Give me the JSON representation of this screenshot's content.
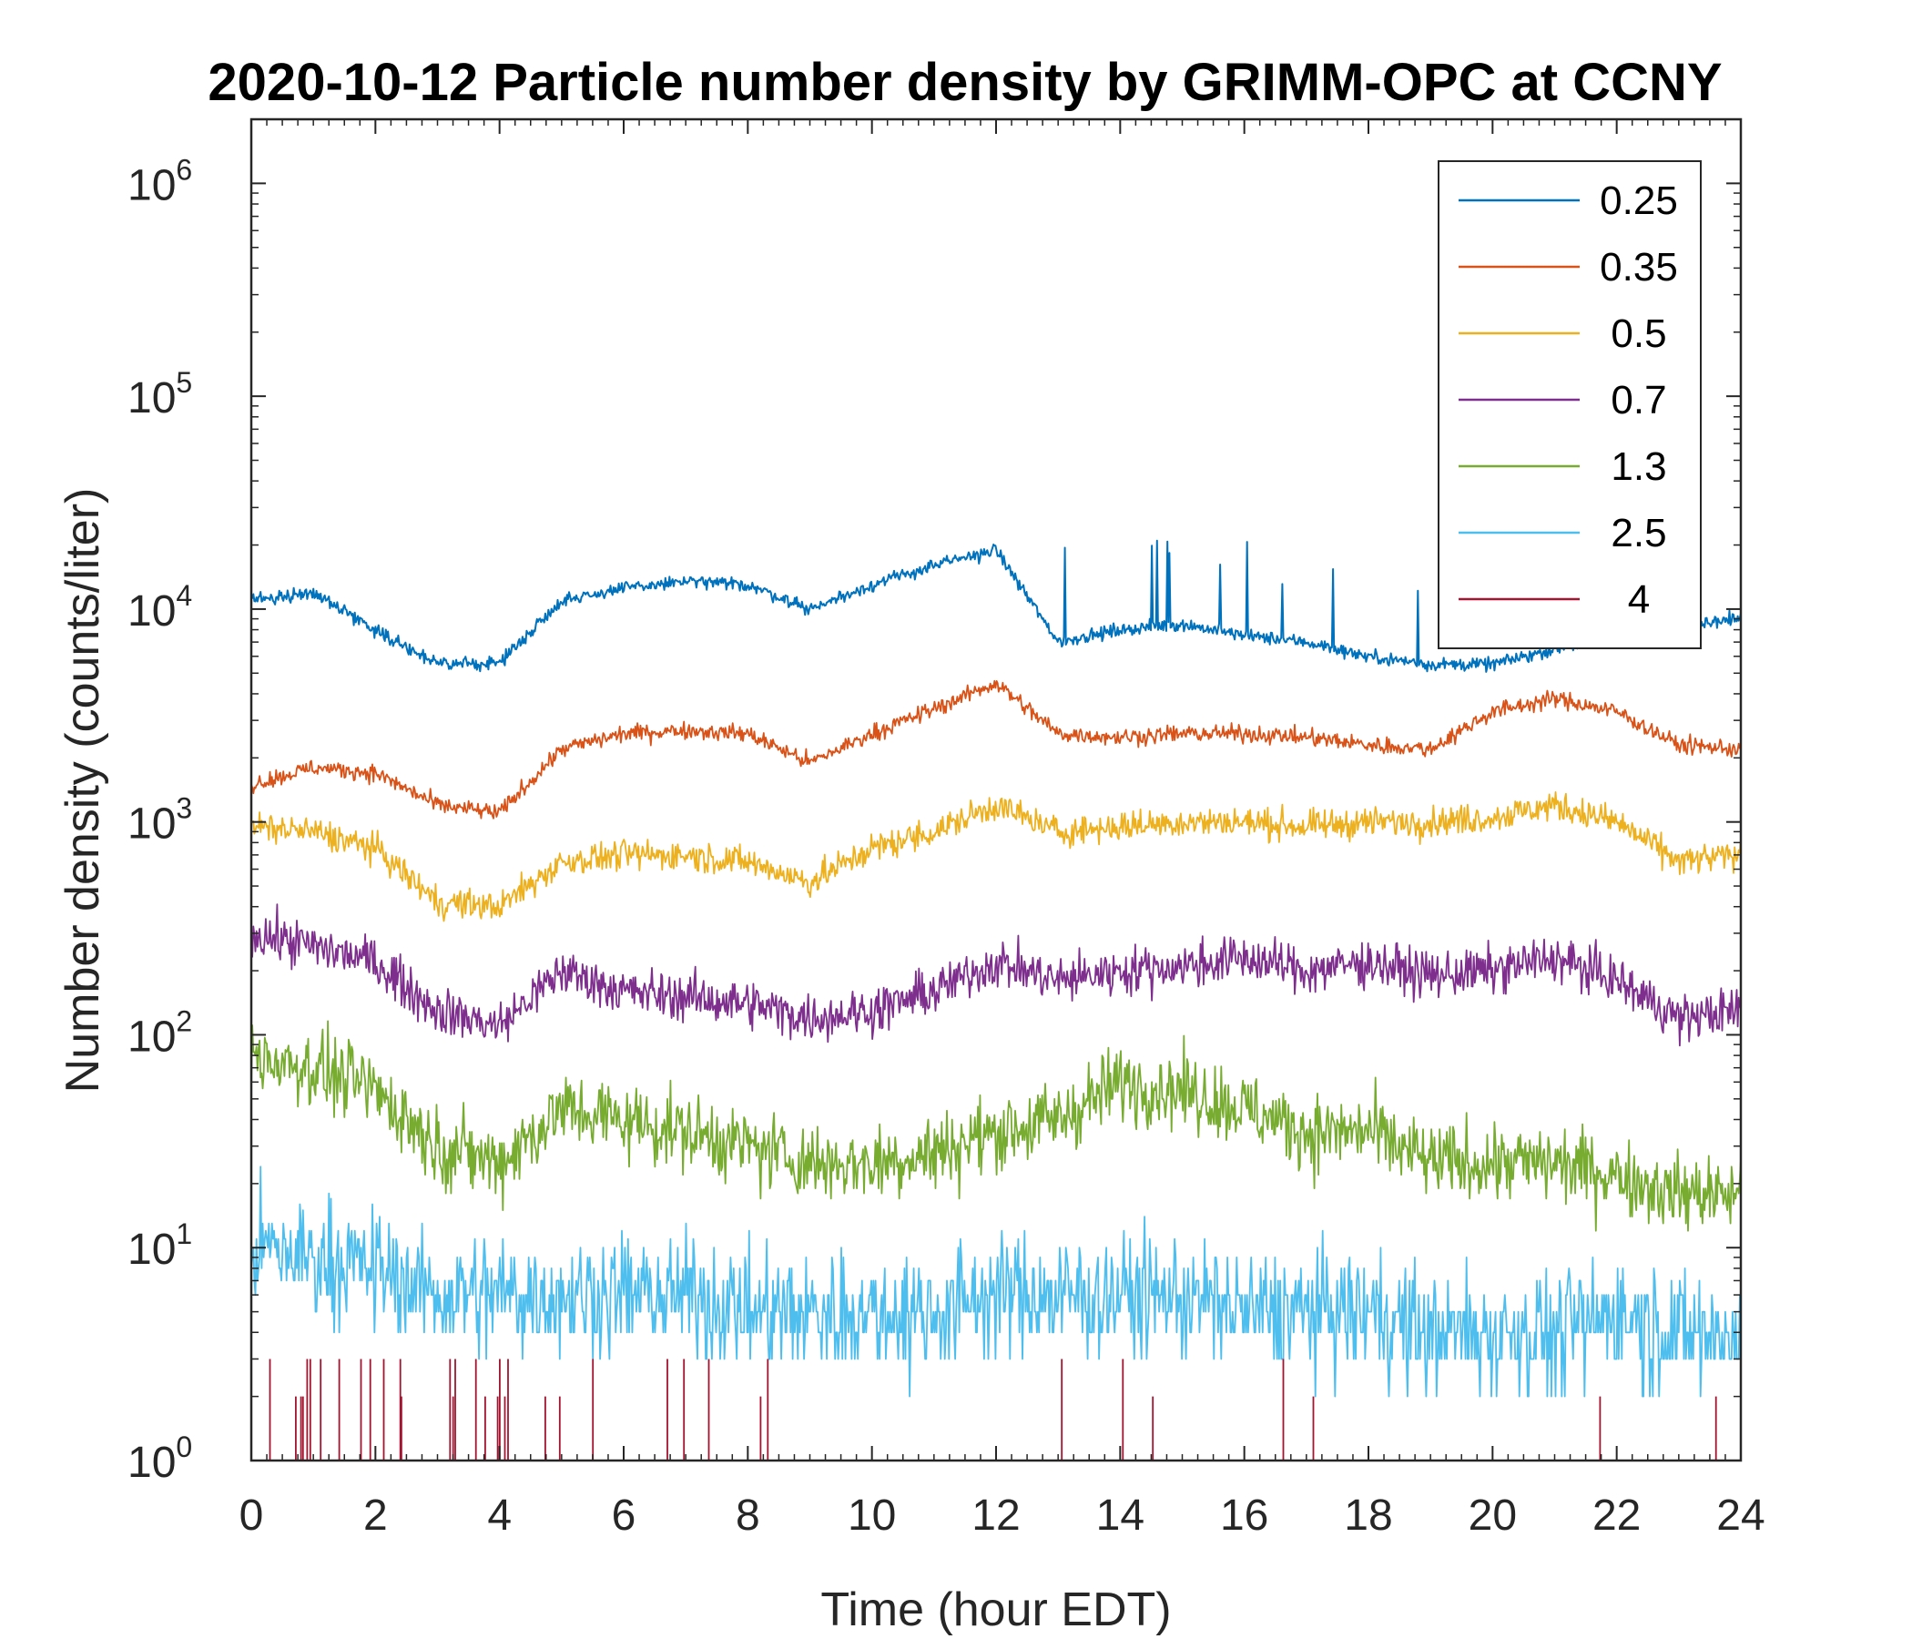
{
  "chart_data": {
    "type": "line",
    "title": "2020-10-12 Particle number density by GRIMM-OPC at CCNY",
    "xlabel": "Time (hour EDT)",
    "ylabel": "Number density (counts/liter)",
    "xlim": [
      0,
      24
    ],
    "ylim": [
      1,
      2000000
    ],
    "yscale": "log",
    "grid": false,
    "legend_position": "top-right",
    "x_ticks": [
      0,
      2,
      4,
      6,
      8,
      10,
      12,
      14,
      16,
      18,
      20,
      22,
      24
    ],
    "x_tick_labels": [
      "0",
      "2",
      "4",
      "6",
      "8",
      "10",
      "12",
      "14",
      "16",
      "18",
      "20",
      "22",
      "24"
    ],
    "y_ticks": [
      1,
      10,
      100,
      1000,
      10000,
      100000,
      1000000
    ],
    "y_tick_labels": [
      {
        "base": "10",
        "exp": "0"
      },
      {
        "base": "10",
        "exp": "1"
      },
      {
        "base": "10",
        "exp": "2"
      },
      {
        "base": "10",
        "exp": "3"
      },
      {
        "base": "10",
        "exp": "4"
      },
      {
        "base": "10",
        "exp": "5"
      },
      {
        "base": "10",
        "exp": "6"
      }
    ],
    "x": [
      0,
      1,
      2,
      3,
      4,
      5,
      6,
      7,
      8,
      9,
      10,
      11,
      12,
      13,
      14,
      15,
      16,
      17,
      18,
      19,
      20,
      21,
      22,
      23,
      24
    ],
    "series": [
      {
        "name": "0.25",
        "color": "#0072BD",
        "values": [
          11000,
          12000,
          8000,
          5500,
          5600,
          11000,
          12500,
          13500,
          13000,
          10000,
          13000,
          16000,
          19000,
          7000,
          8000,
          8500,
          7500,
          7000,
          6000,
          5500,
          5500,
          6500,
          7500,
          8500,
          9000
        ]
      },
      {
        "name": "0.35",
        "color": "#D95319",
        "values": [
          1500,
          1800,
          1700,
          1200,
          1100,
          2200,
          2600,
          2700,
          2600,
          1900,
          2600,
          3400,
          4500,
          2600,
          2500,
          2600,
          2600,
          2500,
          2300,
          2200,
          3300,
          3800,
          3300,
          2300,
          2200
        ]
      },
      {
        "name": "0.5",
        "color": "#EDB120",
        "values": [
          950,
          900,
          750,
          420,
          400,
          650,
          700,
          700,
          650,
          520,
          750,
          900,
          1200,
          900,
          950,
          1000,
          1000,
          950,
          1000,
          1000,
          1050,
          1200,
          1000,
          650,
          700
        ]
      },
      {
        "name": "0.7",
        "color": "#7E2F8E",
        "values": [
          300,
          260,
          220,
          130,
          110,
          200,
          160,
          150,
          140,
          120,
          130,
          160,
          220,
          180,
          200,
          210,
          230,
          200,
          220,
          190,
          200,
          230,
          180,
          120,
          130
        ]
      },
      {
        "name": "1.3",
        "color": "#77AC30",
        "values": [
          80,
          70,
          55,
          30,
          25,
          45,
          40,
          35,
          30,
          25,
          25,
          28,
          35,
          40,
          60,
          55,
          45,
          35,
          35,
          25,
          25,
          25,
          22,
          18,
          18
        ]
      },
      {
        "name": "2.5",
        "color": "#4DBEEE",
        "values": [
          10,
          9,
          8,
          6,
          6,
          6,
          6,
          6,
          5,
          5,
          5,
          5,
          6,
          6,
          6,
          6,
          5,
          5,
          5,
          4,
          4,
          4,
          5,
          4,
          4
        ]
      },
      {
        "name": "4",
        "color": "#A2142F",
        "values": [
          1,
          1,
          1,
          1,
          1,
          1,
          1,
          1,
          1,
          1,
          1,
          1,
          1,
          1,
          1,
          1,
          1,
          1,
          1,
          1,
          1,
          1,
          1,
          1,
          1
        ]
      }
    ]
  }
}
